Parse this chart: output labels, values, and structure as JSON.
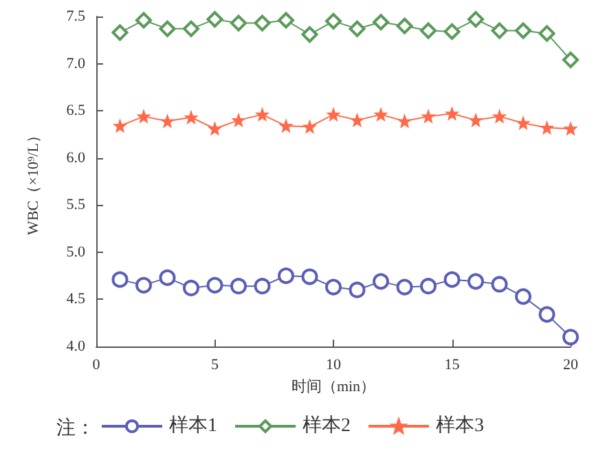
{
  "chart_data": {
    "type": "line",
    "xlabel": "时间（min）",
    "ylabel": "WBC（×10⁹/L）",
    "legend_title": "注：",
    "legend": "bottom",
    "grid": false,
    "x": [
      1,
      2,
      3,
      4,
      5,
      6,
      7,
      8,
      9,
      10,
      11,
      12,
      13,
      14,
      15,
      16,
      17,
      18,
      19,
      20
    ],
    "xlim": [
      0,
      20
    ],
    "xticks": [
      0,
      5,
      10,
      15,
      20
    ],
    "ylim": [
      4.0,
      7.5
    ],
    "yticks": [
      {
        "value": 4,
        "label": "4.0"
      },
      {
        "value": 4.5,
        "label": "4.5"
      },
      {
        "value": 5,
        "label": "5.0"
      },
      {
        "value": 5.5,
        "label": "5.5"
      },
      {
        "value": 6,
        "label": "6.0"
      },
      {
        "value": 6.5,
        "label": "6.5"
      },
      {
        "value": 7,
        "label": "7.0"
      },
      {
        "value": 7.5,
        "label": "7.5"
      }
    ],
    "series": [
      {
        "name": "样本1",
        "color": "#5a5fb5",
        "marker": "circle",
        "values": [
          4.71,
          4.65,
          4.73,
          4.62,
          4.65,
          4.64,
          4.64,
          4.75,
          4.74,
          4.63,
          4.6,
          4.69,
          4.63,
          4.64,
          4.71,
          4.69,
          4.66,
          4.53,
          4.34,
          4.1
        ]
      },
      {
        "name": "样本2",
        "color": "#5a9a5a",
        "marker": "diamond",
        "values": [
          7.33,
          7.46,
          7.37,
          7.37,
          7.47,
          7.43,
          7.43,
          7.46,
          7.31,
          7.45,
          7.37,
          7.44,
          7.4,
          7.35,
          7.34,
          7.47,
          7.35,
          7.35,
          7.32,
          7.04
        ]
      },
      {
        "name": "样本3",
        "color": "#ff6a4a",
        "marker": "star",
        "values": [
          6.34,
          6.44,
          6.39,
          6.43,
          6.31,
          6.4,
          6.46,
          6.34,
          6.33,
          6.46,
          6.4,
          6.46,
          6.39,
          6.44,
          6.47,
          6.4,
          6.44,
          6.37,
          6.32,
          6.31
        ]
      }
    ]
  }
}
